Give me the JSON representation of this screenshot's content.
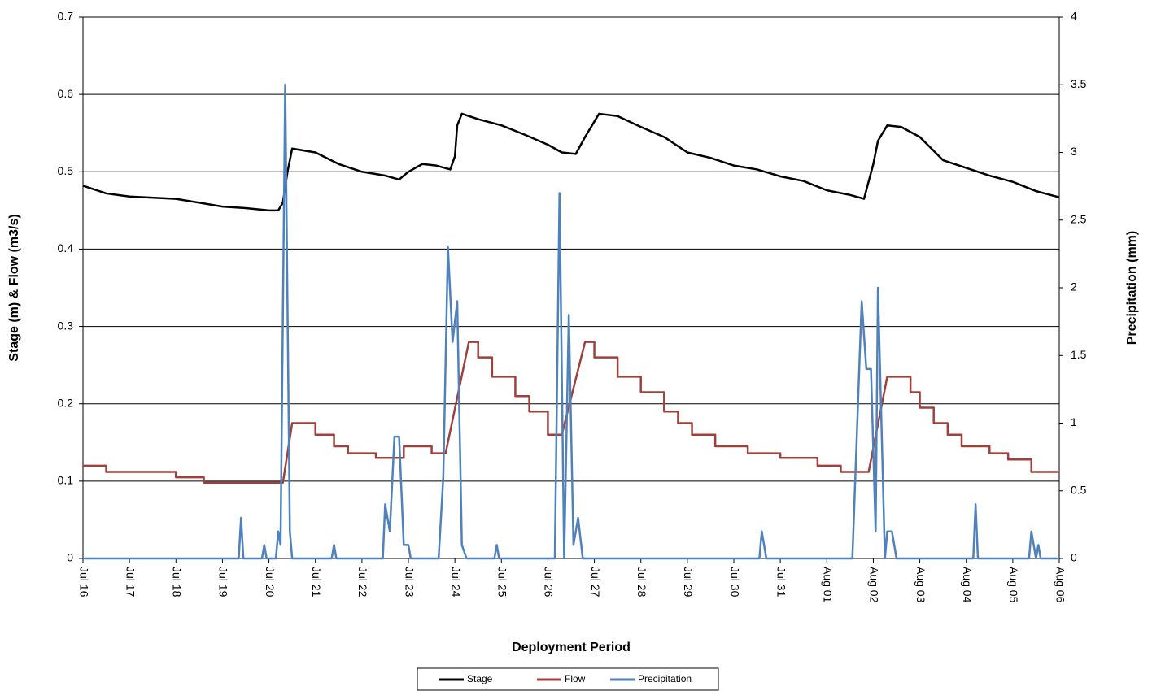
{
  "chart_data": {
    "type": "line",
    "x_label": "Deployment Period",
    "y_label": "Stage (m) & Flow (m3/s)",
    "y2_label": "Precipitation (mm)",
    "xlim": [
      0,
      21
    ],
    "xticks": [
      {
        "value": 0,
        "label": "Jul 16"
      },
      {
        "value": 1,
        "label": "Jul 17"
      },
      {
        "value": 2,
        "label": "Jul 18"
      },
      {
        "value": 3,
        "label": "Jul 19"
      },
      {
        "value": 4,
        "label": "Jul 20"
      },
      {
        "value": 5,
        "label": "Jul 21"
      },
      {
        "value": 6,
        "label": "Jul 22"
      },
      {
        "value": 7,
        "label": "Jul 23"
      },
      {
        "value": 8,
        "label": "Jul 24"
      },
      {
        "value": 9,
        "label": "Jul 25"
      },
      {
        "value": 10,
        "label": "Jul 26"
      },
      {
        "value": 11,
        "label": "Jul 27"
      },
      {
        "value": 12,
        "label": "Jul 28"
      },
      {
        "value": 13,
        "label": "Jul 29"
      },
      {
        "value": 14,
        "label": "Jul 30"
      },
      {
        "value": 15,
        "label": "Jul 31"
      },
      {
        "value": 16,
        "label": "Aug 01"
      },
      {
        "value": 17,
        "label": "Aug 02"
      },
      {
        "value": 18,
        "label": "Aug 03"
      },
      {
        "value": 19,
        "label": "Aug 04"
      },
      {
        "value": 20,
        "label": "Aug 05"
      },
      {
        "value": 21,
        "label": "Aug 06"
      }
    ],
    "ylim": [
      0,
      0.7
    ],
    "yticks": [
      0,
      0.1,
      0.2,
      0.3,
      0.4,
      0.5,
      0.6,
      0.7
    ],
    "y2lim": [
      0,
      4
    ],
    "y2ticks": [
      0,
      0.5,
      1,
      1.5,
      2,
      2.5,
      3,
      3.5,
      4
    ],
    "grid": true,
    "legend": "bottom",
    "series": [
      {
        "name": "Stage",
        "color": "#000000",
        "x": [
          0,
          0.5,
          1,
          2,
          3,
          3.5,
          4,
          4.2,
          4.3,
          4.4,
          4.5,
          5,
          5.5,
          6,
          6.5,
          6.8,
          7,
          7.3,
          7.6,
          7.9,
          8.0,
          8.05,
          8.15,
          8.5,
          9,
          9.5,
          10,
          10.3,
          10.6,
          10.8,
          11.1,
          11.5,
          12,
          12.5,
          13,
          13.5,
          14,
          14.5,
          15,
          15.5,
          16,
          16.5,
          16.8,
          17.0,
          17.1,
          17.3,
          17.6,
          18,
          18.5,
          19,
          19.5,
          20,
          20.5,
          21
        ],
        "values": [
          0.482,
          0.472,
          0.468,
          0.465,
          0.455,
          0.453,
          0.45,
          0.45,
          0.46,
          0.5,
          0.53,
          0.525,
          0.51,
          0.5,
          0.495,
          0.49,
          0.5,
          0.51,
          0.508,
          0.503,
          0.52,
          0.56,
          0.575,
          0.568,
          0.56,
          0.548,
          0.535,
          0.525,
          0.523,
          0.545,
          0.575,
          0.572,
          0.558,
          0.545,
          0.525,
          0.518,
          0.508,
          0.503,
          0.494,
          0.488,
          0.476,
          0.47,
          0.465,
          0.51,
          0.54,
          0.56,
          0.558,
          0.545,
          0.515,
          0.505,
          0.495,
          0.487,
          0.475,
          0.467
        ]
      },
      {
        "name": "Flow",
        "color": "#a0403c",
        "x": [
          0,
          0.5,
          0.5,
          2.0,
          2.0,
          2.6,
          2.6,
          4.3,
          4.5,
          5.0,
          5.0,
          5.4,
          5.4,
          5.7,
          5.7,
          6.3,
          6.3,
          6.9,
          6.9,
          7.5,
          7.5,
          7.8,
          8.3,
          8.5,
          8.5,
          8.8,
          8.8,
          9.3,
          9.3,
          9.6,
          9.6,
          10.0,
          10.0,
          10.3,
          10.8,
          11.0,
          11.0,
          11.5,
          11.5,
          12.0,
          12.0,
          12.5,
          12.5,
          12.8,
          12.8,
          13.1,
          13.1,
          13.6,
          13.6,
          14.3,
          14.3,
          15.0,
          15.0,
          15.8,
          15.8,
          16.3,
          16.3,
          16.9,
          17.3,
          17.8,
          17.8,
          18.0,
          18.0,
          18.3,
          18.3,
          18.6,
          18.6,
          18.9,
          18.9,
          19.5,
          19.5,
          19.9,
          19.9,
          20.4,
          20.4,
          21
        ],
        "values": [
          0.12,
          0.12,
          0.112,
          0.112,
          0.105,
          0.105,
          0.098,
          0.098,
          0.175,
          0.175,
          0.16,
          0.16,
          0.145,
          0.145,
          0.136,
          0.136,
          0.13,
          0.13,
          0.145,
          0.145,
          0.136,
          0.136,
          0.28,
          0.28,
          0.26,
          0.26,
          0.235,
          0.235,
          0.21,
          0.21,
          0.19,
          0.19,
          0.16,
          0.16,
          0.28,
          0.28,
          0.26,
          0.26,
          0.235,
          0.235,
          0.215,
          0.215,
          0.19,
          0.19,
          0.175,
          0.175,
          0.16,
          0.16,
          0.145,
          0.145,
          0.136,
          0.136,
          0.13,
          0.13,
          0.12,
          0.12,
          0.112,
          0.112,
          0.235,
          0.235,
          0.215,
          0.215,
          0.195,
          0.195,
          0.175,
          0.175,
          0.16,
          0.16,
          0.145,
          0.145,
          0.136,
          0.136,
          0.128,
          0.128,
          0.112,
          0.112
        ]
      },
      {
        "name": "Precipitation",
        "color": "#4f81bd",
        "axis": "y2",
        "x": [
          0,
          3.35,
          3.4,
          3.45,
          3.85,
          3.9,
          3.95,
          4.15,
          4.2,
          4.25,
          4.35,
          4.45,
          4.5,
          5.35,
          5.4,
          5.45,
          6.45,
          6.5,
          6.6,
          6.7,
          6.8,
          6.9,
          7.0,
          7.05,
          7.65,
          7.75,
          7.85,
          7.95,
          8.05,
          8.15,
          8.25,
          8.85,
          8.9,
          8.95,
          10.15,
          10.25,
          10.35,
          10.45,
          10.55,
          10.65,
          10.75,
          14.55,
          14.6,
          14.7,
          16.55,
          16.75,
          16.85,
          16.95,
          17.05,
          17.1,
          17.25,
          17.3,
          17.4,
          17.5,
          19.15,
          19.2,
          19.25,
          20.35,
          20.4,
          20.5,
          20.55,
          20.6,
          21
        ],
        "values": [
          0,
          0,
          0.3,
          0,
          0,
          0.1,
          0,
          0,
          0.2,
          0.1,
          3.5,
          0.2,
          0,
          0,
          0.1,
          0,
          0,
          0.4,
          0.2,
          0.9,
          0.9,
          0.1,
          0.1,
          0,
          0,
          0.6,
          2.3,
          1.6,
          1.9,
          0.1,
          0,
          0,
          0.1,
          0,
          0,
          2.7,
          0,
          1.8,
          0.1,
          0.3,
          0,
          0,
          0.2,
          0,
          0,
          1.9,
          1.4,
          1.4,
          0.2,
          2.0,
          0,
          0.2,
          0.2,
          0,
          0,
          0.4,
          0,
          0,
          0.2,
          0,
          0.1,
          0,
          0
        ]
      }
    ]
  }
}
